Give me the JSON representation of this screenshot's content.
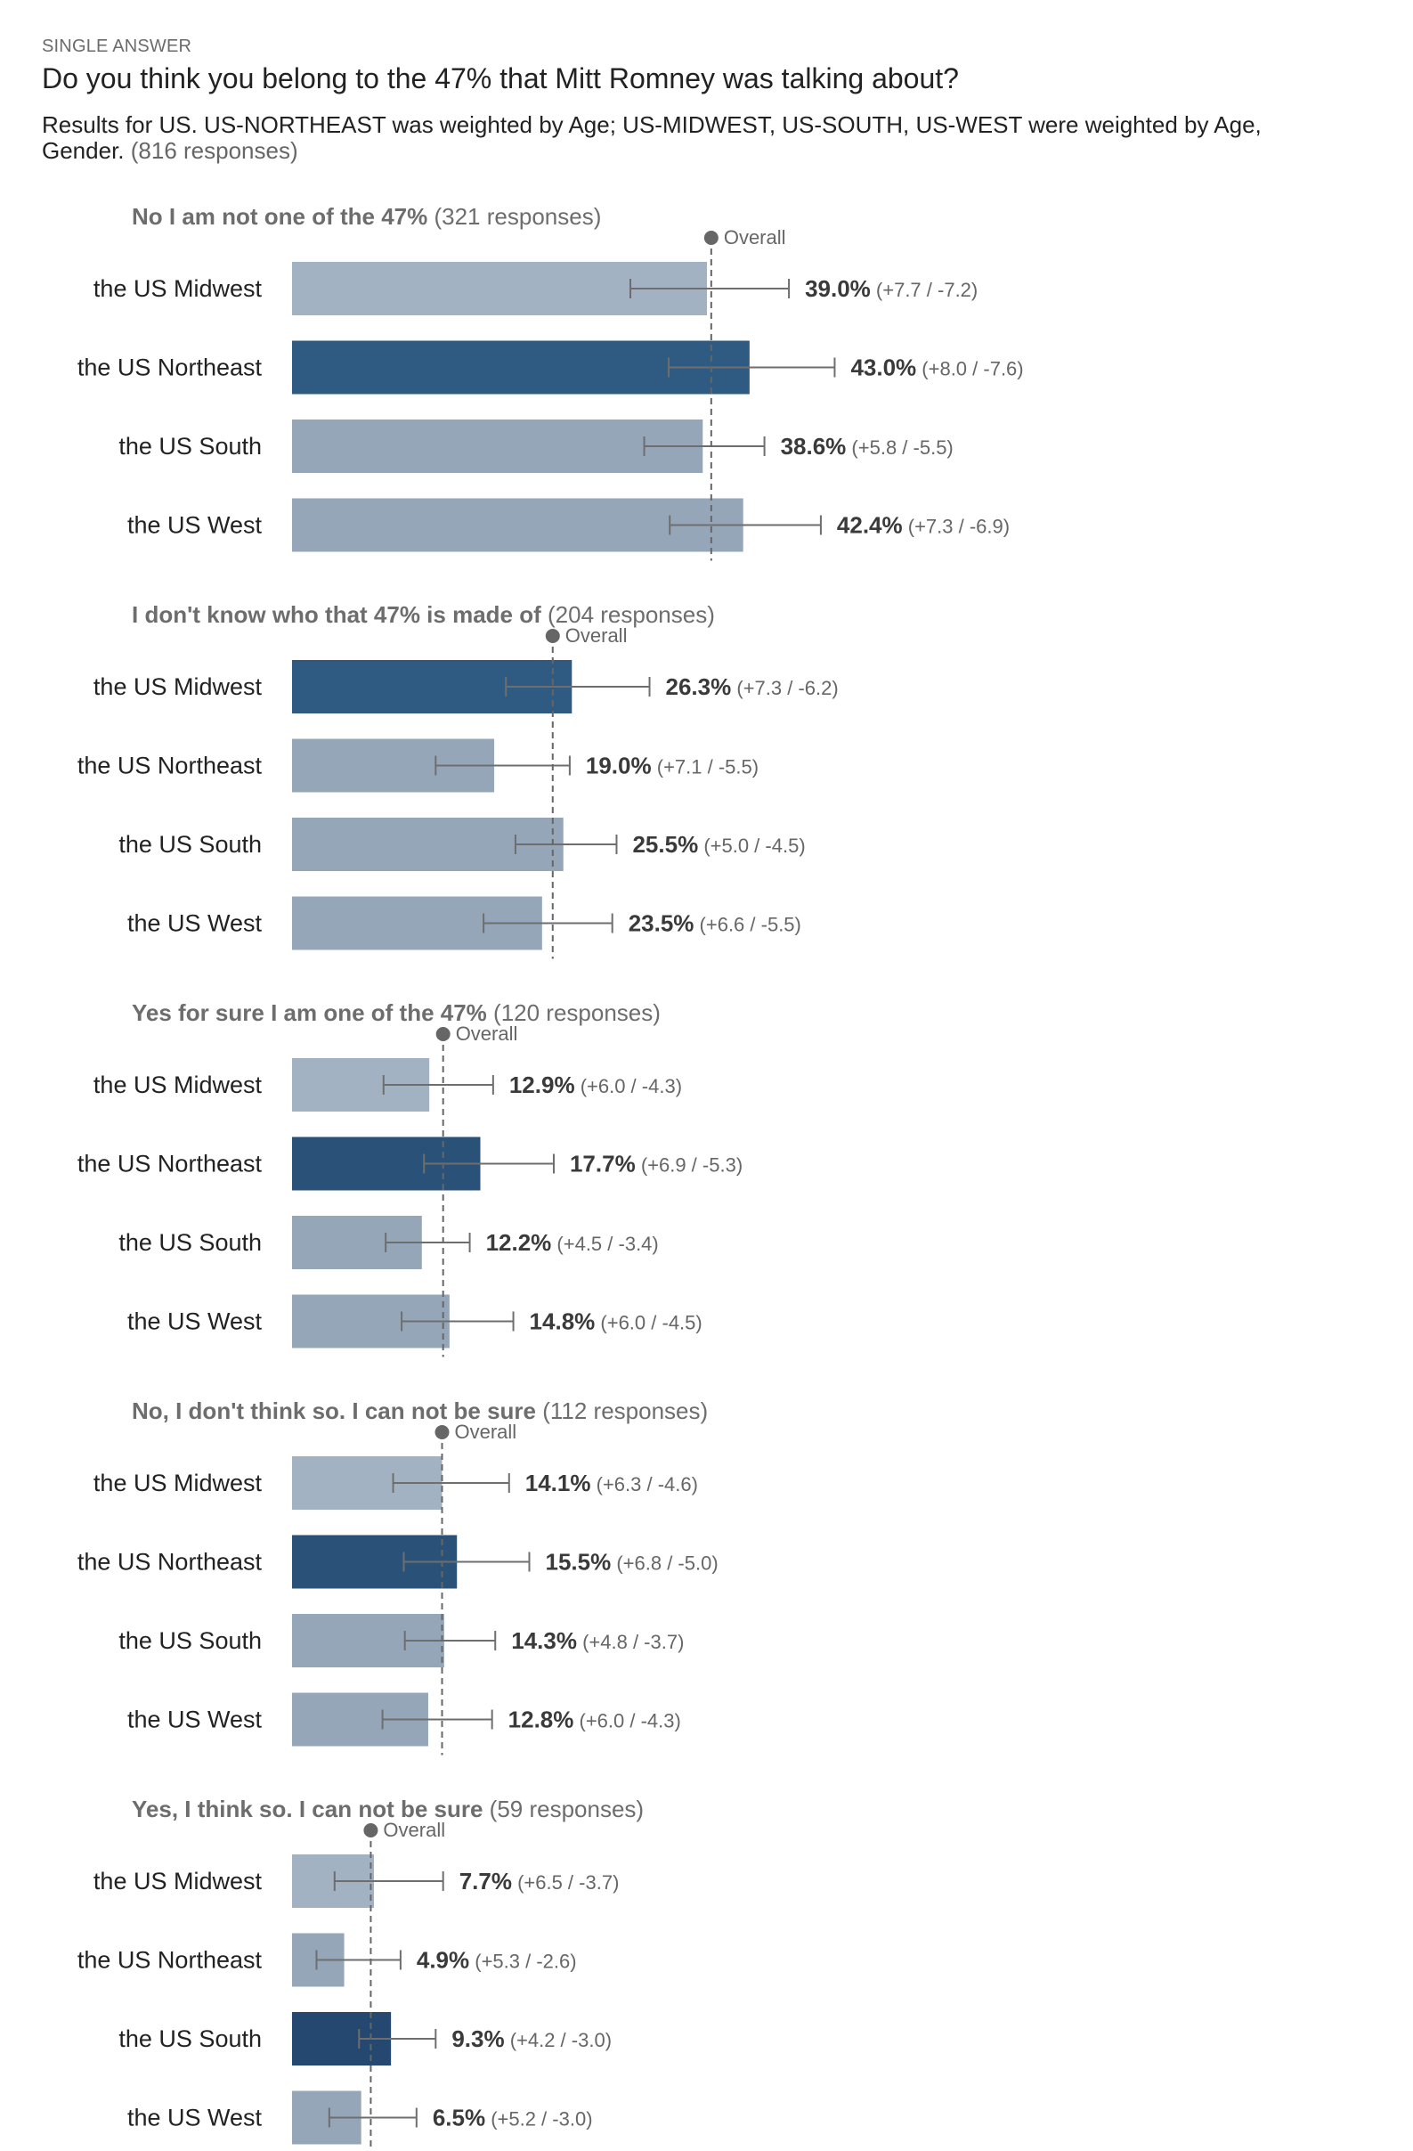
{
  "header": {
    "question_type": "SINGLE ANSWER",
    "question": "Do you think you belong to the 47% that Mitt Romney was talking about?",
    "subtitle": "Results for US. US-NORTHEAST was weighted by Age; US-MIDWEST, US-SOUTH, US-WEST were weighted by Age, Gender.",
    "responses": "(816 responses)"
  },
  "colors": {
    "highlight_bar": "#2f5b82",
    "normal_bar": "#9aabbd",
    "error_bar": "#6e6e6e",
    "overall_line": "#666666",
    "label_text": "#222222",
    "group_title": "#6d6d6d"
  },
  "chart_data": {
    "type": "bar",
    "orientation": "horizontal",
    "unit": "%",
    "overall_label": "Overall",
    "groups": [
      {
        "title": "No I am not one of the 47%",
        "responses": "(321 responses)",
        "overall": 39.4,
        "highlight": "the US Northeast",
        "bars": [
          {
            "category": "the US Midwest",
            "value": 39.0,
            "value_label": "39.0%",
            "plus": 7.7,
            "minus": 7.2,
            "ci_label": "(+7.7 / -7.2)"
          },
          {
            "category": "the US Northeast",
            "value": 43.0,
            "value_label": "43.0%",
            "plus": 8.0,
            "minus": 7.6,
            "ci_label": "(+8.0 / -7.6)"
          },
          {
            "category": "the US South",
            "value": 38.6,
            "value_label": "38.6%",
            "plus": 5.8,
            "minus": 5.5,
            "ci_label": "(+5.8 / -5.5)"
          },
          {
            "category": "the US West",
            "value": 42.4,
            "value_label": "42.4%",
            "plus": 7.3,
            "minus": 6.9,
            "ci_label": "(+7.3 / -6.9)"
          }
        ]
      },
      {
        "title": "I don't know who that 47% is made of",
        "responses": "(204 responses)",
        "overall": 24.5,
        "highlight": "the US Midwest",
        "bars": [
          {
            "category": "the US Midwest",
            "value": 26.3,
            "value_label": "26.3%",
            "plus": 7.3,
            "minus": 6.2,
            "ci_label": "(+7.3 / -6.2)"
          },
          {
            "category": "the US Northeast",
            "value": 19.0,
            "value_label": "19.0%",
            "plus": 7.1,
            "minus": 5.5,
            "ci_label": "(+7.1 / -5.5)"
          },
          {
            "category": "the US South",
            "value": 25.5,
            "value_label": "25.5%",
            "plus": 5.0,
            "minus": 4.5,
            "ci_label": "(+5.0 / -4.5)"
          },
          {
            "category": "the US West",
            "value": 23.5,
            "value_label": "23.5%",
            "plus": 6.6,
            "minus": 5.5,
            "ci_label": "(+6.6 / -5.5)"
          }
        ]
      },
      {
        "title": "Yes for sure I am one of the 47%",
        "responses": "(120 responses)",
        "overall": 14.2,
        "highlight": "the US Northeast",
        "bars": [
          {
            "category": "the US Midwest",
            "value": 12.9,
            "value_label": "12.9%",
            "plus": 6.0,
            "minus": 4.3,
            "ci_label": "(+6.0 / -4.3)"
          },
          {
            "category": "the US Northeast",
            "value": 17.7,
            "value_label": "17.7%",
            "plus": 6.9,
            "minus": 5.3,
            "ci_label": "(+6.9 / -5.3)"
          },
          {
            "category": "the US South",
            "value": 12.2,
            "value_label": "12.2%",
            "plus": 4.5,
            "minus": 3.4,
            "ci_label": "(+4.5 / -3.4)"
          },
          {
            "category": "the US West",
            "value": 14.8,
            "value_label": "14.8%",
            "plus": 6.0,
            "minus": 4.5,
            "ci_label": "(+6.0 / -4.5)"
          }
        ]
      },
      {
        "title": "No, I don't think so. I can not be sure",
        "responses": "(112 responses)",
        "overall": 14.1,
        "highlight": "the US Northeast",
        "bars": [
          {
            "category": "the US Midwest",
            "value": 14.1,
            "value_label": "14.1%",
            "plus": 6.3,
            "minus": 4.6,
            "ci_label": "(+6.3 / -4.6)"
          },
          {
            "category": "the US Northeast",
            "value": 15.5,
            "value_label": "15.5%",
            "plus": 6.8,
            "minus": 5.0,
            "ci_label": "(+6.8 / -5.0)"
          },
          {
            "category": "the US South",
            "value": 14.3,
            "value_label": "14.3%",
            "plus": 4.8,
            "minus": 3.7,
            "ci_label": "(+4.8 / -3.7)"
          },
          {
            "category": "the US West",
            "value": 12.8,
            "value_label": "12.8%",
            "plus": 6.0,
            "minus": 4.3,
            "ci_label": "(+6.0 / -4.3)"
          }
        ]
      },
      {
        "title": "Yes, I think so. I can not be sure",
        "responses": "(59 responses)",
        "overall": 7.4,
        "highlight": "the US South",
        "bars": [
          {
            "category": "the US Midwest",
            "value": 7.7,
            "value_label": "7.7%",
            "plus": 6.5,
            "minus": 3.7,
            "ci_label": "(+6.5 / -3.7)"
          },
          {
            "category": "the US Northeast",
            "value": 4.9,
            "value_label": "4.9%",
            "plus": 5.3,
            "minus": 2.6,
            "ci_label": "(+5.3 / -2.6)"
          },
          {
            "category": "the US South",
            "value": 9.3,
            "value_label": "9.3%",
            "plus": 4.2,
            "minus": 3.0,
            "ci_label": "(+4.2 / -3.0)"
          },
          {
            "category": "the US West",
            "value": 6.5,
            "value_label": "6.5%",
            "plus": 5.2,
            "minus": 3.0,
            "ci_label": "(+5.2 / -3.0)"
          }
        ]
      }
    ]
  }
}
